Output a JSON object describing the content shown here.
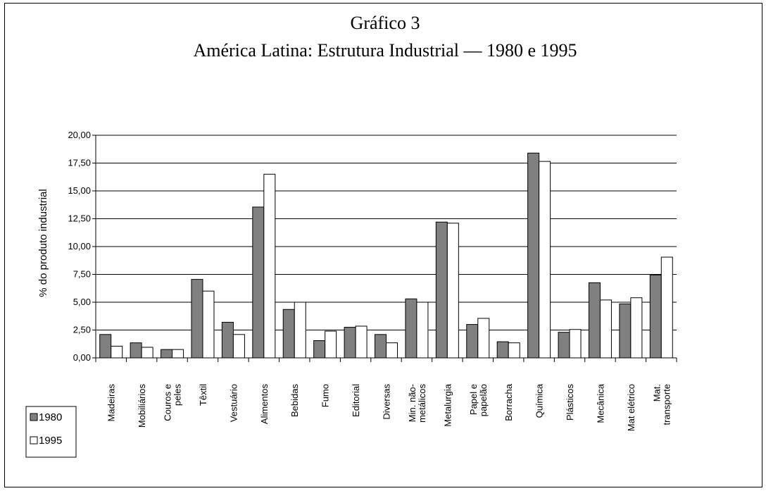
{
  "chart_data": {
    "type": "bar",
    "title": "Gráfico 3",
    "subtitle": "América Latina: Estrutura Industrial — 1980 e 1995",
    "xlabel": "",
    "ylabel": "% do produto industrial",
    "ylim": [
      0,
      20
    ],
    "yticks": [
      "0,00",
      "2,50",
      "5,00",
      "7,50",
      "10,00",
      "12,50",
      "15,00",
      "17,50",
      "20,00"
    ],
    "grid": true,
    "legend_position": "bottom-left",
    "categories": [
      [
        "Madeiras"
      ],
      [
        "Mobiliários"
      ],
      [
        "Couros e",
        "peles"
      ],
      [
        "Têxtil"
      ],
      [
        "Vestuário"
      ],
      [
        "Alimentos"
      ],
      [
        "Bebidas"
      ],
      [
        "Fumo"
      ],
      [
        "Editorial"
      ],
      [
        "Diversas"
      ],
      [
        "Min. não-",
        "metálicos"
      ],
      [
        "Metalurgia"
      ],
      [
        "Papel e",
        "papelão"
      ],
      [
        "Borracha"
      ],
      [
        "Química"
      ],
      [
        "Plásticos"
      ],
      [
        "Mecânica"
      ],
      [
        "Mat elétrico"
      ],
      [
        "Mat.",
        "transporte"
      ]
    ],
    "series": [
      {
        "name": "1980",
        "color": "#808080",
        "values": [
          2.1,
          1.35,
          0.75,
          7.05,
          3.2,
          13.55,
          4.35,
          1.55,
          2.75,
          2.1,
          5.3,
          12.2,
          3.0,
          1.45,
          18.4,
          2.3,
          6.75,
          4.85,
          7.45
        ]
      },
      {
        "name": "1995",
        "color": "#ffffff",
        "values": [
          1.05,
          0.95,
          0.75,
          6.0,
          2.1,
          16.5,
          5.0,
          2.4,
          2.85,
          1.35,
          5.0,
          12.1,
          3.55,
          1.35,
          17.65,
          2.55,
          5.2,
          5.4,
          9.05
        ]
      }
    ]
  }
}
